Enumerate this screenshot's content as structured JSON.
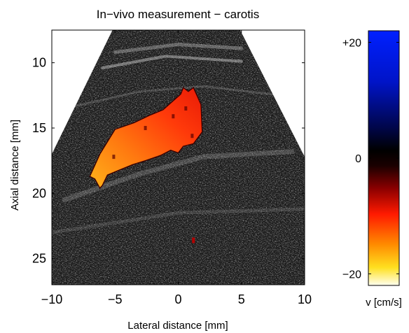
{
  "chart_data": {
    "type": "heatmap",
    "title": "In−vivo measurement − carotis",
    "xlabel": "Lateral distance [mm]",
    "ylabel": "Axial distance [mm]",
    "xlim": [
      -10,
      10
    ],
    "ylim": [
      27,
      7.5
    ],
    "x_ticks": [
      "−10",
      "−5",
      "0",
      "5",
      "10"
    ],
    "y_ticks": [
      "10",
      "15",
      "20",
      "25"
    ],
    "underlay": "grayscale B-mode ultrasound image (sector shape)",
    "overlay": "color Doppler velocity map of carotid blood flow",
    "colorbar": {
      "label": "v [cm/s]",
      "range": [
        -22,
        22
      ],
      "ticks": [
        "+20",
        "0",
        "−20"
      ],
      "tick_values": [
        20,
        0,
        -20
      ],
      "colormap": "negative: yellow-orange-red-black, positive: black-dark blue-blue"
    }
  }
}
